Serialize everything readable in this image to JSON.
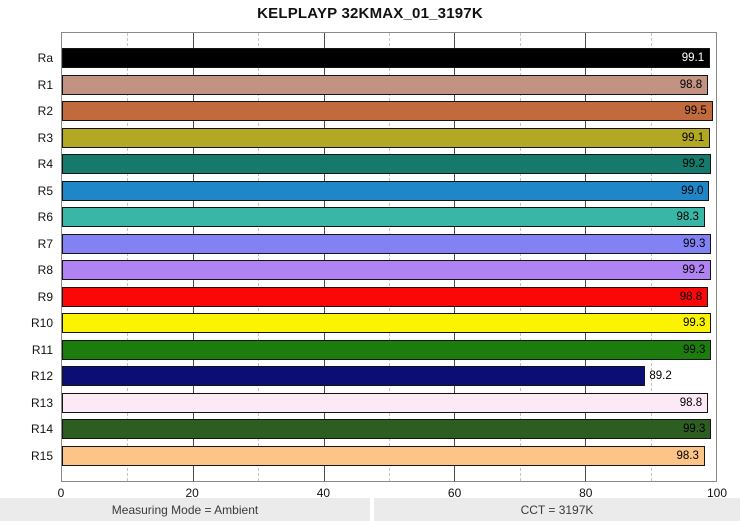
{
  "title": "KELPLAYP 32KMAX_01_3197K",
  "chart_data": {
    "type": "bar",
    "orientation": "horizontal",
    "title": "KELPLAYP 32KMAX_01_3197K",
    "categories": [
      "Ra",
      "R1",
      "R2",
      "R3",
      "R4",
      "R5",
      "R6",
      "R7",
      "R8",
      "R9",
      "R10",
      "R11",
      "R12",
      "R13",
      "R14",
      "R15"
    ],
    "values": [
      99.1,
      98.8,
      99.5,
      99.1,
      99.2,
      99.0,
      98.3,
      99.3,
      99.2,
      98.8,
      99.3,
      99.3,
      89.2,
      98.8,
      99.3,
      98.3
    ],
    "xlim": [
      0,
      100
    ],
    "x_ticks": [
      "0",
      "20",
      "40",
      "60",
      "80",
      "100"
    ],
    "x_minor_ticks": [
      10,
      30,
      50,
      70,
      90
    ],
    "grid": true,
    "legend": "none",
    "rows": [
      {
        "label": "Ra",
        "value": 99.1,
        "display": "99.1",
        "color": "#000000",
        "value_text_color": "#ffffff",
        "value_inside": true
      },
      {
        "label": "R1",
        "value": 98.8,
        "display": "98.8",
        "color": "#c29283",
        "value_text_color": "#000000",
        "value_inside": true
      },
      {
        "label": "R2",
        "value": 99.5,
        "display": "99.5",
        "color": "#c06a3e",
        "value_text_color": "#000000",
        "value_inside": true
      },
      {
        "label": "R3",
        "value": 99.1,
        "display": "99.1",
        "color": "#b3a823",
        "value_text_color": "#000000",
        "value_inside": true
      },
      {
        "label": "R4",
        "value": 99.2,
        "display": "99.2",
        "color": "#157a6c",
        "value_text_color": "#000000",
        "value_inside": true
      },
      {
        "label": "R5",
        "value": 99.0,
        "display": "99.0",
        "color": "#1f87c7",
        "value_text_color": "#000000",
        "value_inside": true
      },
      {
        "label": "R6",
        "value": 98.3,
        "display": "98.3",
        "color": "#3ab6a6",
        "value_text_color": "#000000",
        "value_inside": true
      },
      {
        "label": "R7",
        "value": 99.3,
        "display": "99.3",
        "color": "#8282f4",
        "value_text_color": "#000000",
        "value_inside": true
      },
      {
        "label": "R8",
        "value": 99.2,
        "display": "99.2",
        "color": "#b083f2",
        "value_text_color": "#000000",
        "value_inside": true
      },
      {
        "label": "R9",
        "value": 98.8,
        "display": "98.8",
        "color": "#fb0707",
        "value_text_color": "#000000",
        "value_inside": true
      },
      {
        "label": "R10",
        "value": 99.3,
        "display": "99.3",
        "color": "#fcf303",
        "value_text_color": "#000000",
        "value_inside": true
      },
      {
        "label": "R11",
        "value": 99.3,
        "display": "99.3",
        "color": "#1d7c0e",
        "value_text_color": "#000000",
        "value_inside": true
      },
      {
        "label": "R12",
        "value": 89.2,
        "display": "89.2",
        "color": "#0d0d76",
        "value_text_color": "#000000",
        "value_inside": false
      },
      {
        "label": "R13",
        "value": 98.8,
        "display": "98.8",
        "color": "#fbe9f6",
        "value_text_color": "#000000",
        "value_inside": true
      },
      {
        "label": "R14",
        "value": 99.3,
        "display": "99.3",
        "color": "#2d5e21",
        "value_text_color": "#000000",
        "value_inside": true
      },
      {
        "label": "R15",
        "value": 98.3,
        "display": "98.3",
        "color": "#fcc486",
        "value_text_color": "#000000",
        "value_inside": true
      }
    ]
  },
  "footer": {
    "left": "Measuring Mode = Ambient",
    "right": "CCT = 3197K"
  }
}
